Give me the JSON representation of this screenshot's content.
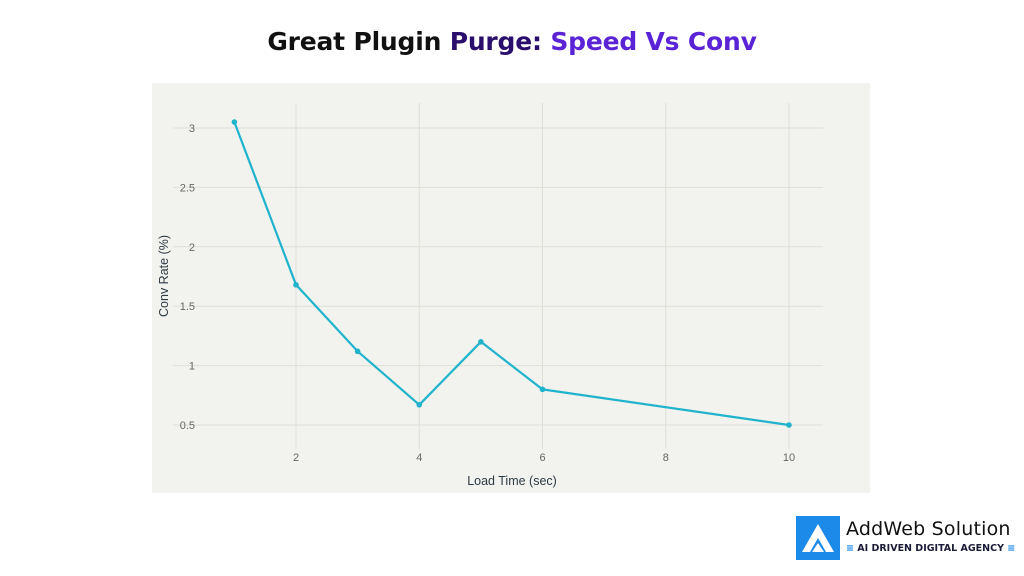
{
  "title": {
    "part1": "Great Plugin ",
    "part2": "Purge: ",
    "part3": "Speed Vs Conv"
  },
  "colors": {
    "line": "#1fb3cc",
    "panel_bg": "#f2f2ee",
    "grid": "#dedfd9",
    "title_dark": "#111111",
    "title_mid": "#2a0e6b",
    "title_accent": "#5b23d6",
    "logo_blue": "#1c8ae8"
  },
  "chart_data": {
    "type": "line",
    "title": "Great Plugin Purge: Speed Vs Conv",
    "xlabel": "Load Time (sec)",
    "ylabel": "Conv Rate (%)",
    "x": [
      1,
      2,
      3,
      4,
      5,
      6,
      10
    ],
    "series": [
      {
        "name": "Conv Rate",
        "values": [
          3.05,
          1.68,
          1.12,
          0.67,
          1.2,
          0.8,
          0.5
        ]
      }
    ],
    "x_ticks": [
      "2",
      "4",
      "6",
      "8",
      "10"
    ],
    "y_ticks": [
      "0.5",
      "1",
      "1.5",
      "2",
      "2.5",
      "3"
    ],
    "xlim": [
      0.0,
      10.55
    ],
    "ylim": [
      0.28,
      3.2
    ],
    "grid": true,
    "legend": "none",
    "markers": true
  },
  "logo": {
    "icon": "addweb-a-logo-icon",
    "name": "AddWeb Solution",
    "tagline": "AI DRIVEN DIGITAL AGENCY",
    "tag_left_glyph": "≡",
    "tag_right_glyph": "≡"
  }
}
